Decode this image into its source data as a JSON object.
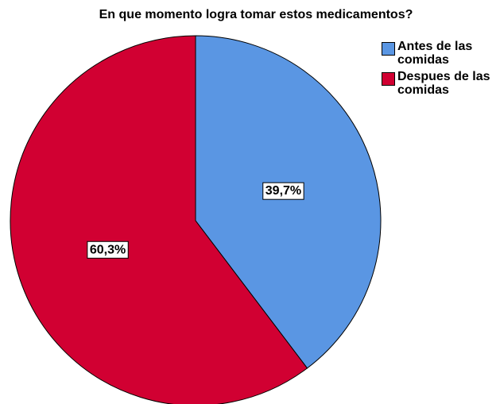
{
  "chart_data": {
    "type": "pie",
    "title": "En que momento logra tomar estos medicamentos?",
    "categories": [
      "Antes de las comidas",
      "Despues de las comidas"
    ],
    "values": [
      39.7,
      60.3
    ],
    "value_labels": [
      "39,7%",
      "60,3%"
    ],
    "colors": [
      "#5a96e3",
      "#d10032"
    ],
    "legend": "top-right"
  }
}
